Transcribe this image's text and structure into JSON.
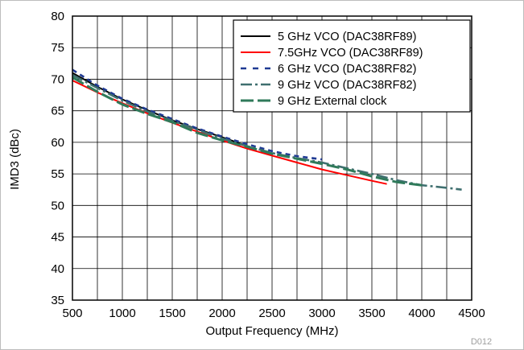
{
  "chart_data": {
    "type": "line",
    "xlabel": "Output Frequency (MHz)",
    "ylabel": "IMD3 (dBc)",
    "xlim": [
      500,
      4500
    ],
    "ylim": [
      35,
      80
    ],
    "xticks": [
      500,
      1000,
      1500,
      2000,
      2500,
      3000,
      3500,
      4000,
      4500
    ],
    "yticks": [
      35,
      40,
      45,
      50,
      55,
      60,
      65,
      70,
      75,
      80
    ],
    "x_minor_step": 250,
    "grid": true,
    "legend_position": "top-right",
    "figure_id": "D012",
    "series": [
      {
        "name": "5 GHz VCO (DAC38RF89)",
        "color": "#000000",
        "style": "solid",
        "x": [
          500,
          750,
          1000,
          1250,
          1500,
          1750,
          2000,
          2200
        ],
        "y": [
          71.0,
          68.8,
          66.8,
          65.1,
          63.5,
          62.1,
          60.8,
          59.7
        ]
      },
      {
        "name": "7.5GHz VCO (DAC38RF89)",
        "color": "#ff0000",
        "style": "solid",
        "x": [
          500,
          750,
          1000,
          1250,
          1500,
          1750,
          2000,
          2250,
          2500,
          2750,
          3000,
          3250,
          3500,
          3650
        ],
        "y": [
          69.8,
          67.9,
          66.2,
          64.6,
          63.1,
          61.7,
          60.3,
          59.0,
          57.9,
          56.8,
          55.7,
          54.8,
          53.9,
          53.4
        ]
      },
      {
        "name": "6 GHz VCO (DAC38RF82)",
        "color": "#1f3a93",
        "style": "dashed",
        "x": [
          500,
          750,
          1000,
          1250,
          1500,
          1750,
          2000,
          2250,
          2500,
          2750,
          3000
        ],
        "y": [
          71.5,
          69.0,
          66.9,
          65.2,
          63.7,
          62.2,
          60.9,
          59.7,
          58.6,
          57.8,
          57.3
        ]
      },
      {
        "name": "9 GHz VCO (DAC38RF82)",
        "color": "#3f6f6f",
        "style": "dashdot",
        "x": [
          500,
          750,
          1000,
          1250,
          1500,
          1750,
          2000,
          2250,
          2500,
          2750,
          3000,
          3250,
          3500,
          3750,
          4000,
          4250,
          4400
        ],
        "y": [
          70.7,
          68.6,
          66.6,
          64.9,
          63.4,
          62.0,
          60.6,
          59.4,
          58.3,
          57.5,
          56.8,
          55.9,
          55.0,
          54.0,
          53.2,
          52.8,
          52.5
        ]
      },
      {
        "name": "9 GHz External clock",
        "color": "#2f7a5a",
        "style": "longdash",
        "x": [
          500,
          750,
          1000,
          1250,
          1500,
          1750,
          2000,
          2250,
          2500,
          2750,
          3000,
          3250,
          3500,
          3750,
          4000
        ],
        "y": [
          70.3,
          68.0,
          66.0,
          64.5,
          63.2,
          61.5,
          60.3,
          59.3,
          58.2,
          57.4,
          56.6,
          55.7,
          54.6,
          53.7,
          53.2
        ]
      }
    ]
  }
}
